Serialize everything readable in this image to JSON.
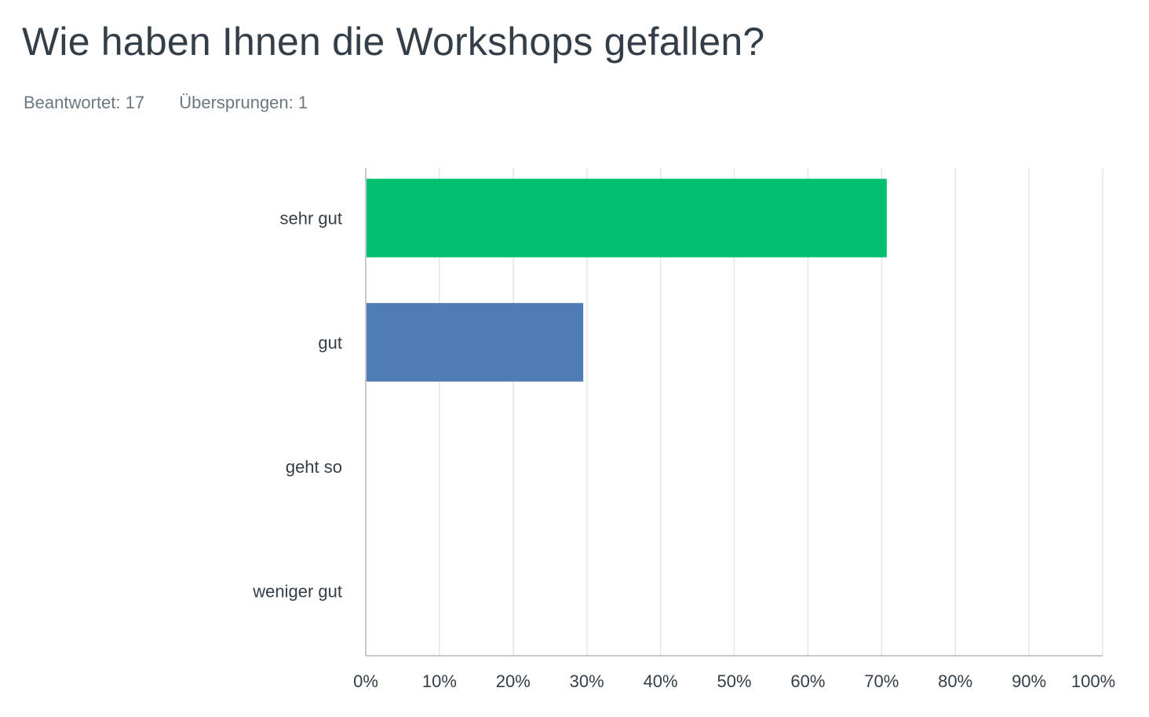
{
  "title": "Wie haben Ihnen die Workshops gefallen?",
  "stats": {
    "answered": "Beantwortet: 17",
    "skipped": "Übersprungen: 1"
  },
  "chart_data": {
    "type": "bar",
    "orientation": "horizontal",
    "title": "Wie haben Ihnen die Workshops gefallen?",
    "categories": [
      "sehr gut",
      "gut",
      "geht so",
      "weniger gut"
    ],
    "values": [
      70.59,
      29.41,
      0,
      0
    ],
    "bar_colors": [
      "#00bf6f",
      "#507cb6",
      "#f9be00",
      "#6bc8cd"
    ],
    "xlim": [
      0,
      100
    ],
    "x_ticks": [
      "0%",
      "10%",
      "20%",
      "30%",
      "40%",
      "50%",
      "60%",
      "70%",
      "80%",
      "90%",
      "100%"
    ],
    "grid": true,
    "legend": "none"
  }
}
